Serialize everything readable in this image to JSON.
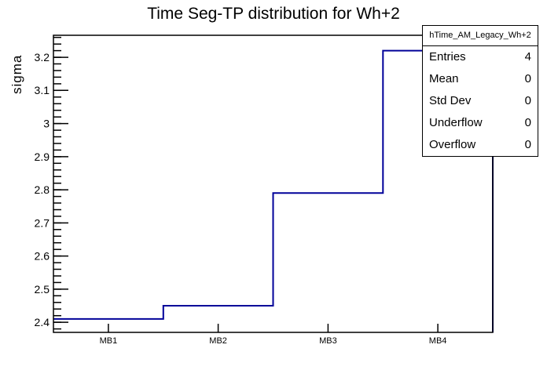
{
  "chart_data": {
    "type": "step-histogram",
    "title": "Time Seg-TP distribution for Wh+2",
    "xlabel": "",
    "ylabel": "sigma",
    "categories": [
      "MB1",
      "MB2",
      "MB3",
      "MB4"
    ],
    "values": [
      2.41,
      2.45,
      2.79,
      3.22
    ],
    "ylim": [
      2.3695,
      3.2665
    ],
    "y_major_ticks": [
      {
        "v": 2.4,
        "label": "2.4"
      },
      {
        "v": 2.5,
        "label": "2.5"
      },
      {
        "v": 2.6,
        "label": "2.6"
      },
      {
        "v": 2.7,
        "label": "2.7"
      },
      {
        "v": 2.8,
        "label": "2.8"
      },
      {
        "v": 2.9,
        "label": "2.9"
      },
      {
        "v": 3.0,
        "label": "3"
      },
      {
        "v": 3.1,
        "label": "3.1"
      },
      {
        "v": 3.2,
        "label": "3.2"
      }
    ],
    "y_minor_step": 0.02,
    "line_color": "#000099",
    "frame_color": "#000000",
    "grid": false,
    "legend_position": "none"
  },
  "stats_box": {
    "header": "hTime_AM_Legacy_Wh+2",
    "rows": [
      {
        "label": "Entries",
        "value": "4"
      },
      {
        "label": "Mean",
        "value": "0"
      },
      {
        "label": "Std Dev",
        "value": "0"
      },
      {
        "label": "Underflow",
        "value": "0"
      },
      {
        "label": "Overflow",
        "value": "0"
      }
    ]
  }
}
